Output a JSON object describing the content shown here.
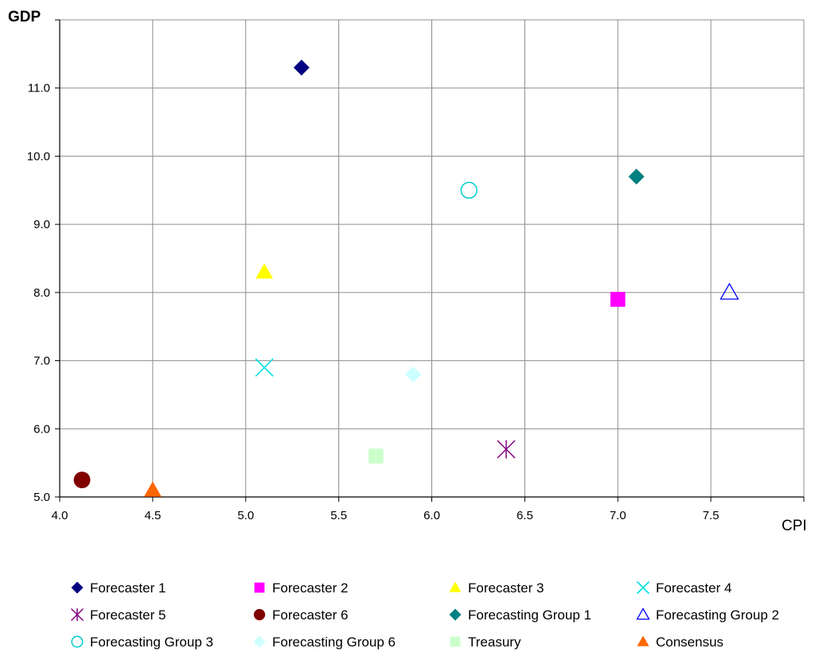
{
  "chart_data": {
    "type": "scatter",
    "xlabel": "CPI",
    "ylabel": "GDP",
    "xlim": [
      4.0,
      8.0
    ],
    "ylim": [
      5.0,
      12.0
    ],
    "x_ticks": [
      "4.0",
      "4.5",
      "5.0",
      "5.5",
      "6.0",
      "6.5",
      "7.0",
      "7.5"
    ],
    "y_ticks": [
      "5.0",
      "6.0",
      "7.0",
      "8.0",
      "9.0",
      "10.0",
      "11.0"
    ],
    "grid": true,
    "legend_position": "bottom",
    "series": [
      {
        "name": "Forecaster 1",
        "x": 5.3,
        "y": 11.3,
        "marker": "diamond",
        "color": "#000080"
      },
      {
        "name": "Forecaster 2",
        "x": 7.0,
        "y": 7.9,
        "marker": "square",
        "color": "#ff00ff"
      },
      {
        "name": "Forecaster 3",
        "x": 5.1,
        "y": 8.3,
        "marker": "triangle",
        "color": "#ffff00"
      },
      {
        "name": "Forecaster 4",
        "x": 5.1,
        "y": 6.9,
        "marker": "x",
        "color": "#00e0e0"
      },
      {
        "name": "Forecaster 5",
        "x": 6.4,
        "y": 5.7,
        "marker": "asterisk",
        "color": "#800080"
      },
      {
        "name": "Forecaster 6",
        "x": 4.12,
        "y": 5.25,
        "marker": "circle",
        "color": "#800000"
      },
      {
        "name": "Forecasting Group 1",
        "x": 7.1,
        "y": 9.7,
        "marker": "diamond",
        "color": "#008080"
      },
      {
        "name": "Forecasting Group 2",
        "x": 7.6,
        "y": 8.0,
        "marker": "triangle-open",
        "color": "#0000ff"
      },
      {
        "name": "Forecasting Group 3",
        "x": 6.2,
        "y": 9.5,
        "marker": "circle-open",
        "color": "#00cccc"
      },
      {
        "name": "Forecasting Group 6",
        "x": 5.9,
        "y": 6.8,
        "marker": "diamond",
        "color": "#ccffff"
      },
      {
        "name": "Treasury",
        "x": 5.7,
        "y": 5.6,
        "marker": "square",
        "color": "#ccffcc"
      },
      {
        "name": "Consensus",
        "x": 4.5,
        "y": 5.1,
        "marker": "triangle",
        "color": "#ff6600"
      }
    ]
  }
}
